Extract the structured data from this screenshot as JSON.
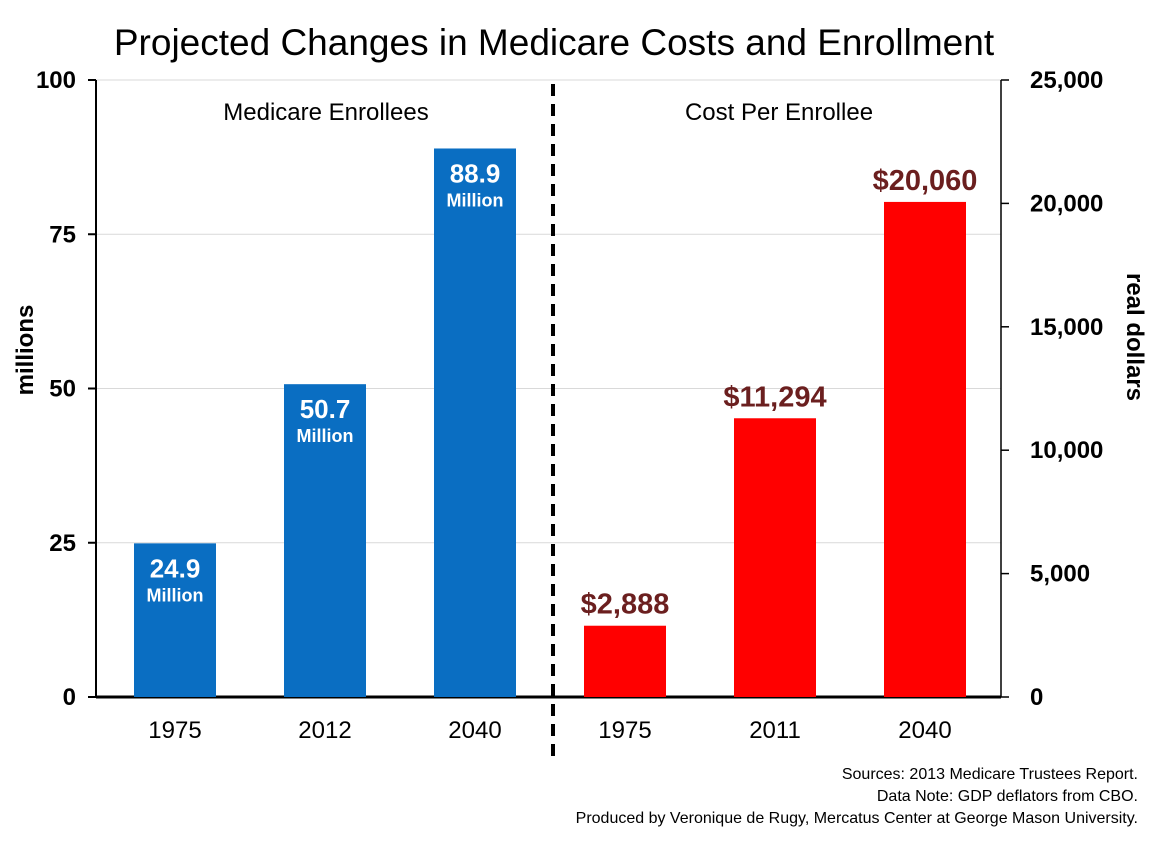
{
  "title": "Projected Changes in Medicare Costs and Enrollment",
  "left_axis": {
    "label": "millions",
    "ticks": [
      "0",
      "25",
      "50",
      "75",
      "100"
    ]
  },
  "right_axis": {
    "label": "real dollars",
    "ticks": [
      "0",
      "5,000",
      "10,000",
      "15,000",
      "20,000",
      "25,000"
    ]
  },
  "colors": {
    "enrollees": "#0a6ec2",
    "cost": "#ff0000",
    "cost_label": "#6b1f1f"
  },
  "sources": [
    "Sources: 2013 Medicare Trustees Report.",
    "Data Note: GDP deflators from CBO.",
    "Produced by Veronique de Rugy, Mercatus Center at George Mason University."
  ],
  "chart_data": [
    {
      "type": "bar",
      "title": "Medicare Enrollees",
      "categories": [
        "1975",
        "2012",
        "2040"
      ],
      "values": [
        24.9,
        50.7,
        88.9
      ],
      "value_labels": [
        "24.9",
        "50.7",
        "88.9"
      ],
      "unit_label": "Million",
      "ylabel": "millions",
      "ylim": [
        0,
        100
      ],
      "axis": "left"
    },
    {
      "type": "bar",
      "title": "Cost Per Enrollee",
      "categories": [
        "1975",
        "2011",
        "2040"
      ],
      "values": [
        2888,
        11294,
        20060
      ],
      "value_labels": [
        "$2,888",
        "$11,294",
        "$20,060"
      ],
      "ylabel": "real dollars",
      "ylim": [
        0,
        25000
      ],
      "axis": "right"
    }
  ]
}
